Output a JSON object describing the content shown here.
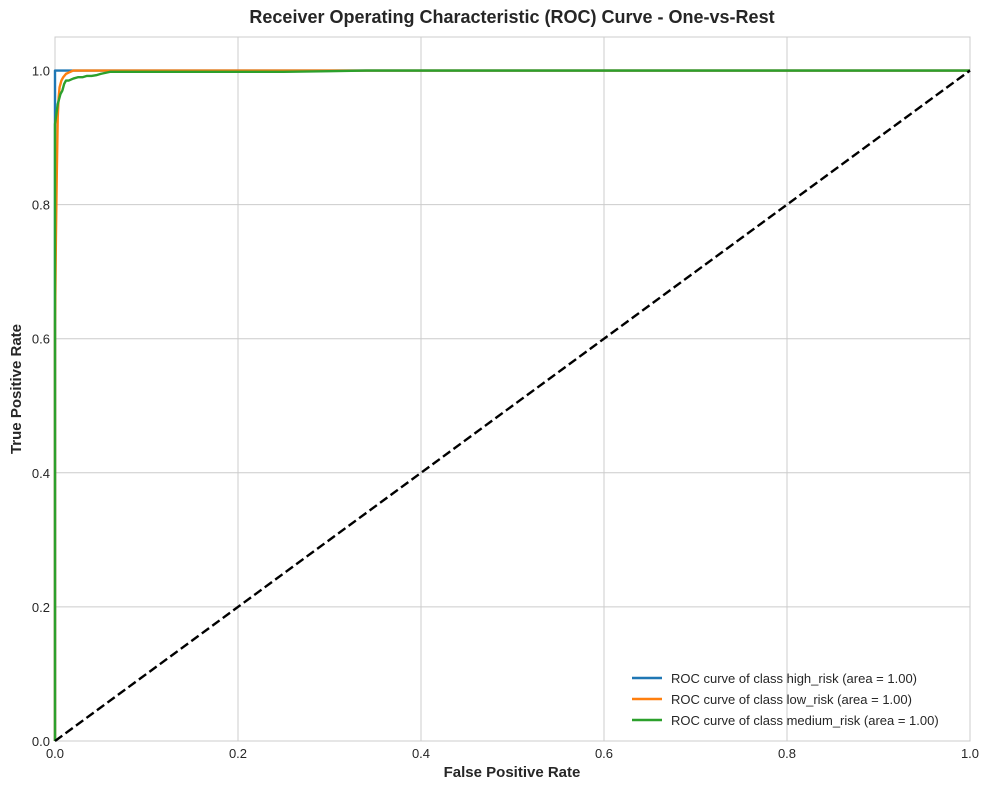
{
  "chart_data": {
    "type": "line",
    "title": "Receiver Operating Characteristic (ROC) Curve - One-vs-Rest",
    "xlabel": "False Positive Rate",
    "ylabel": "True Positive Rate",
    "xlim": [
      0.0,
      1.0
    ],
    "ylim": [
      0.0,
      1.05
    ],
    "xticks": [
      "0.0",
      "0.2",
      "0.4",
      "0.6",
      "0.8",
      "1.0"
    ],
    "yticks": [
      "0.0",
      "0.2",
      "0.4",
      "0.6",
      "0.8",
      "1.0"
    ],
    "grid": true,
    "legend_position": "lower-right",
    "series": [
      {
        "name": "ROC curve of class high_risk (area = 1.00)",
        "color": "#1f77b4",
        "x": [
          0.0,
          0.0,
          0.0,
          0.0,
          1.0
        ],
        "y": [
          0.0,
          0.6,
          0.95,
          1.0,
          1.0
        ]
      },
      {
        "name": "ROC curve of class low_risk (area = 1.00)",
        "color": "#ff7f0e",
        "x": [
          0.0,
          0.0,
          0.001,
          0.002,
          0.003,
          0.004,
          0.005,
          0.007,
          0.009,
          0.012,
          0.015,
          0.02,
          0.025,
          1.0
        ],
        "y": [
          0.0,
          0.62,
          0.75,
          0.85,
          0.93,
          0.96,
          0.975,
          0.985,
          0.99,
          0.995,
          0.997,
          1.0,
          1.0,
          1.0
        ]
      },
      {
        "name": "ROC curve of class medium_risk (area = 1.00)",
        "color": "#2ca02c",
        "x": [
          0.0,
          0.0,
          0.002,
          0.003,
          0.005,
          0.006,
          0.008,
          0.01,
          0.012,
          0.015,
          0.02,
          0.025,
          0.03,
          0.035,
          0.04,
          0.045,
          0.05,
          0.06,
          0.1,
          0.2,
          0.25,
          0.3,
          0.34,
          0.4,
          1.0
        ],
        "y": [
          0.0,
          0.92,
          0.94,
          0.95,
          0.96,
          0.965,
          0.97,
          0.98,
          0.985,
          0.985,
          0.988,
          0.99,
          0.99,
          0.992,
          0.992,
          0.993,
          0.995,
          0.998,
          0.998,
          0.998,
          0.998,
          0.999,
          1.0,
          1.0,
          1.0
        ]
      },
      {
        "name": "",
        "color": "#000000",
        "dashed": true,
        "x": [
          0.0,
          1.0
        ],
        "y": [
          0.0,
          1.0
        ]
      }
    ]
  }
}
